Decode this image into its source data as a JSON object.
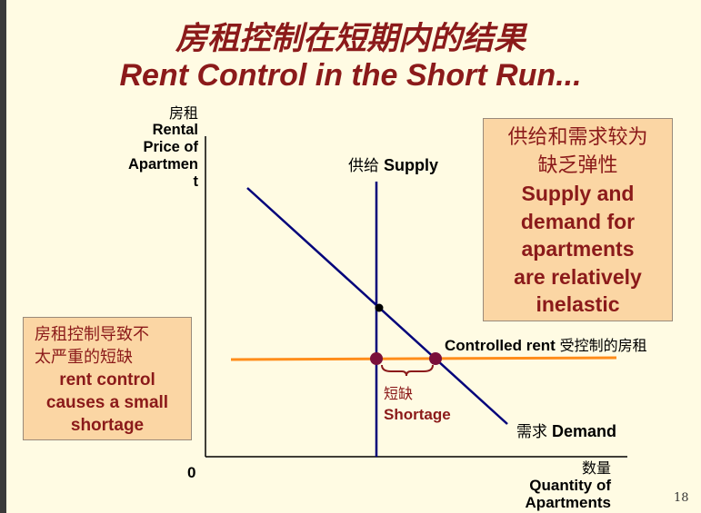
{
  "title_cn": "房租控制在短期内的结果",
  "title_en": "Rent Control in the Short Run...",
  "y_axis": {
    "label_cn": "房租",
    "label_en_lines": [
      "Rental",
      "Price of",
      "Apartmen",
      "t"
    ]
  },
  "x_axis": {
    "label_cn": "数量",
    "label_en_lines": [
      "Quantity of",
      "Apartments"
    ]
  },
  "origin_label": "0",
  "supply": {
    "label_cn": "供给",
    "label_en": "Supply",
    "color": "#00007A"
  },
  "demand": {
    "label_cn": "需求",
    "label_en": "Demand",
    "color": "#00007A"
  },
  "controlled_rent": {
    "label_en": "Controlled rent",
    "label_cn": "受控制的房租",
    "color": "#FF8C1A"
  },
  "shortage": {
    "label_cn": "短缺",
    "label_en": "Shortage",
    "color": "#8B1A1A"
  },
  "right_box": {
    "cn_lines": [
      "供给和需求较为",
      "缺乏弹性"
    ],
    "en_lines": [
      "Supply and",
      "demand for",
      "apartments",
      "are relatively",
      "inelastic"
    ]
  },
  "left_box": {
    "cn_lines": [
      "房租控制导致不",
      "太严重的短缺"
    ],
    "en_lines": [
      "rent control",
      "causes a small",
      "shortage"
    ]
  },
  "page_number": "18"
}
